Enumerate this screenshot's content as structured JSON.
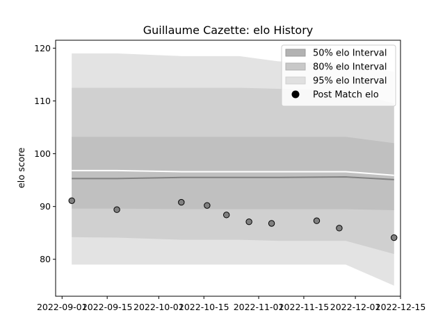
{
  "chart_data": {
    "type": "area",
    "title": "Guillaume Cazette: elo History",
    "xlabel": "",
    "ylabel": "elo score",
    "x_ticks": [
      "2022-09-01",
      "2022-09-15",
      "2022-10-01",
      "2022-10-15",
      "2022-11-01",
      "2022-11-15",
      "2022-12-01",
      "2022-12-15"
    ],
    "y_ticks": [
      80,
      90,
      100,
      110,
      120
    ],
    "xlim": [
      "2022-08-30",
      "2022-12-15"
    ],
    "ylim": [
      73,
      121.5
    ],
    "legend_position": "top-right",
    "grid": false,
    "legend": [
      {
        "label": "50% elo Interval",
        "kind": "patch",
        "color": "#b2b2b2"
      },
      {
        "label": "80% elo Interval",
        "kind": "patch",
        "color": "#c8c8c8"
      },
      {
        "label": "95% elo Interval",
        "kind": "patch",
        "color": "#e0e0e0"
      },
      {
        "label": "Post Match elo",
        "kind": "marker",
        "color": "#000000"
      }
    ],
    "band_x": [
      "2022-09-04",
      "2022-09-18",
      "2022-10-08",
      "2022-10-26",
      "2022-11-07",
      "2022-11-28",
      "2022-12-13"
    ],
    "bands": {
      "p95": {
        "lower": [
          79.0,
          79.0,
          79.0,
          79.0,
          79.0,
          79.0,
          75.0
        ],
        "upper": [
          119.0,
          119.0,
          118.5,
          118.5,
          117.5,
          117.0,
          115.5
        ]
      },
      "p80": {
        "lower": [
          84.2,
          84.1,
          83.7,
          83.7,
          83.5,
          83.5,
          81.0
        ],
        "upper": [
          112.5,
          112.5,
          112.5,
          112.5,
          112.3,
          112.0,
          109.5
        ]
      },
      "p50": {
        "lower": [
          89.6,
          89.6,
          89.5,
          89.5,
          89.5,
          89.5,
          89.3
        ],
        "upper": [
          103.2,
          103.2,
          103.2,
          103.2,
          103.2,
          103.2,
          102.0
        ]
      }
    },
    "median_line": {
      "x": [
        "2022-09-04",
        "2022-09-18",
        "2022-10-08",
        "2022-11-07",
        "2022-11-28",
        "2022-12-13"
      ],
      "y": [
        95.3,
        95.3,
        95.5,
        95.5,
        95.6,
        95.1
      ],
      "color": "#808080"
    },
    "mean_line": {
      "x": [
        "2022-09-04",
        "2022-09-18",
        "2022-10-08",
        "2022-11-07",
        "2022-11-28",
        "2022-12-13"
      ],
      "y": [
        96.8,
        96.8,
        96.6,
        96.6,
        96.6,
        95.9
      ],
      "color": "#ffffff"
    },
    "points": {
      "x": [
        "2022-09-04",
        "2022-09-18",
        "2022-10-08",
        "2022-10-16",
        "2022-10-22",
        "2022-10-29",
        "2022-11-05",
        "2022-11-19",
        "2022-11-26",
        "2022-12-13"
      ],
      "y": [
        91.1,
        89.4,
        90.8,
        90.2,
        88.4,
        87.1,
        86.8,
        87.3,
        85.9,
        84.1
      ],
      "color": "#808080"
    }
  }
}
